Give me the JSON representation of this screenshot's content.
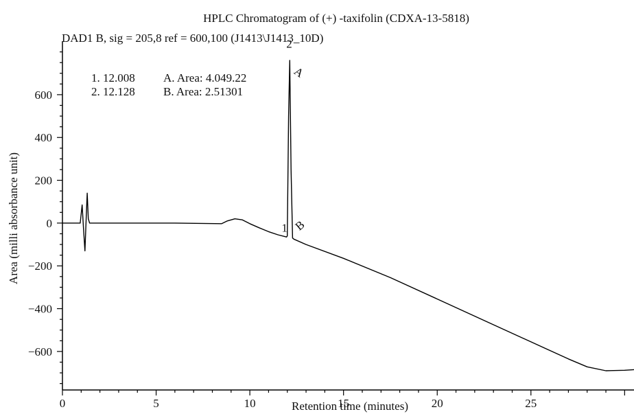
{
  "chart_data": {
    "type": "line",
    "title": "HPLC Chromatogram of (+) -taxifolin (CDXA-13-5818)",
    "subtitle": "DAD1 B, sig = 205,8 ref = 600,100 (J1413\\J1413_10D)",
    "xlabel": "Retention time (minutes)",
    "ylabel": "Area (milli absorbance unit)",
    "xlim": [
      0,
      30.5
    ],
    "ylim": [
      -780,
      850
    ],
    "x_ticks": [
      0,
      5,
      10,
      15,
      20,
      25
    ],
    "x_tick_labels": [
      "0",
      "5",
      "10",
      "15",
      "20",
      "25"
    ],
    "y_ticks": [
      600,
      400,
      200,
      0,
      -200,
      -400,
      -600
    ],
    "y_tick_labels": [
      "600",
      "400",
      "200",
      "0",
      "−200",
      "−400",
      "−600"
    ],
    "grid": false,
    "line_color": "#000000",
    "series": [
      {
        "x": [
          0,
          0.95,
          1.05,
          1.12,
          1.2,
          1.27,
          1.32,
          1.38,
          1.45,
          1.55,
          3,
          6,
          8.5,
          8.8,
          9.2,
          9.6,
          10,
          10.5,
          11,
          11.5,
          11.96,
          12.0,
          12.07,
          12.13,
          12.2,
          12.28,
          12.35,
          13,
          15,
          17.5,
          20,
          22.5,
          25,
          27,
          28,
          29,
          30,
          30.5
        ],
        "y": [
          0,
          0,
          85,
          -20,
          -130,
          30,
          140,
          20,
          0,
          0,
          0,
          0,
          -3,
          10,
          20,
          15,
          -3,
          -22,
          -40,
          -55,
          -65,
          -60,
          500,
          760,
          250,
          -70,
          -75,
          -100,
          -165,
          -255,
          -355,
          -455,
          -555,
          -635,
          -672,
          -690,
          -688,
          -685
        ]
      }
    ],
    "peak_labels": [
      {
        "label": "1",
        "x": 11.85,
        "y": -40
      },
      {
        "label": "2",
        "x": 12.1,
        "y": 820
      }
    ],
    "annotations": [
      {
        "label": "A",
        "x": 12.5,
        "y": 690,
        "rotate": 35
      },
      {
        "label": "B",
        "x": 12.8,
        "y": -25,
        "rotate": -40
      }
    ],
    "table_rows": [
      {
        "num": "1. 12.008",
        "area": "A. Area: 4.049.22"
      },
      {
        "num": "2. 12.128",
        "area": "B. Area: 2.51301"
      }
    ]
  }
}
